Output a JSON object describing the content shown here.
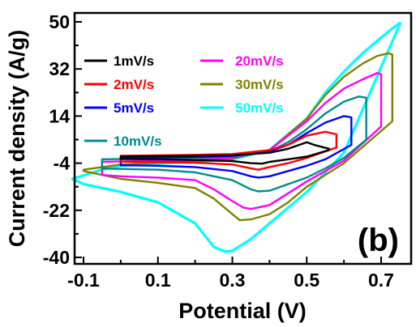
{
  "chart_data": {
    "type": "line",
    "xlabel": "Potential (V)",
    "ylabel": "Current density (A/g)",
    "xlim": [
      -0.1,
      0.75
    ],
    "ylim": [
      -40,
      50
    ],
    "x_ticks": [
      -0.1,
      0.1,
      0.3,
      0.5,
      0.7
    ],
    "x_tick_labels": [
      "-0.1",
      "0.1",
      "0.3",
      "0.5",
      "0.7"
    ],
    "y_ticks": [
      -40,
      -22,
      -4,
      14,
      32,
      50
    ],
    "y_tick_labels": [
      "-40",
      "-22",
      "-4",
      "14",
      "32",
      "50"
    ],
    "grid": false,
    "legend_position": "top",
    "panel_label": "(b)",
    "series": [
      {
        "name": "1mV/s",
        "color": "#000000",
        "x": [
          0.0,
          0.1,
          0.2,
          0.3,
          0.4,
          0.45,
          0.5,
          0.52,
          0.56,
          0.56,
          0.5,
          0.45,
          0.4,
          0.38,
          0.35,
          0.3,
          0.2,
          0.1,
          0.0
        ],
        "y": [
          -1.5,
          -1.3,
          -1.2,
          -1.0,
          0.0,
          1.5,
          4.0,
          3.0,
          1.5,
          1.0,
          -1.5,
          -2.5,
          -3.5,
          -4.2,
          -4.0,
          -3.2,
          -2.8,
          -2.5,
          -2.4
        ]
      },
      {
        "name": "2mV/s",
        "color": "#ff0000",
        "x": [
          0.0,
          0.1,
          0.2,
          0.3,
          0.4,
          0.45,
          0.5,
          0.55,
          0.58,
          0.58,
          0.5,
          0.45,
          0.4,
          0.37,
          0.35,
          0.3,
          0.2,
          0.1,
          0.0
        ],
        "y": [
          -1.2,
          -1.0,
          -0.8,
          -0.5,
          1.0,
          3.0,
          6.5,
          8.0,
          7.0,
          2.0,
          -2.0,
          -4.0,
          -5.5,
          -6.5,
          -6.0,
          -4.5,
          -3.8,
          -3.5,
          -3.4
        ]
      },
      {
        "name": "5mV/s",
        "color": "#0000ff",
        "x": [
          0.0,
          0.1,
          0.2,
          0.3,
          0.4,
          0.45,
          0.5,
          0.55,
          0.6,
          0.62,
          0.62,
          0.55,
          0.5,
          0.45,
          0.4,
          0.37,
          0.35,
          0.3,
          0.2,
          0.1,
          0.0
        ],
        "y": [
          -2.0,
          -1.8,
          -1.6,
          -1.2,
          0.5,
          3.0,
          7.5,
          11.5,
          14.0,
          13.5,
          3.0,
          -2.5,
          -5.0,
          -7.0,
          -9.0,
          -9.5,
          -9.0,
          -7.0,
          -5.5,
          -5.0,
          -4.8
        ]
      },
      {
        "name": "10mV/s",
        "color": "#008b8b",
        "x": [
          -0.05,
          0.1,
          0.2,
          0.3,
          0.4,
          0.45,
          0.5,
          0.55,
          0.6,
          0.64,
          0.66,
          0.66,
          0.6,
          0.55,
          0.5,
          0.45,
          0.4,
          0.37,
          0.35,
          0.3,
          0.2,
          0.1,
          0.0,
          -0.05
        ],
        "y": [
          -2.5,
          -2.2,
          -2.0,
          -1.5,
          0.5,
          4.0,
          9.0,
          15.0,
          19.5,
          21.5,
          21.0,
          5.0,
          -2.0,
          -6.0,
          -9.5,
          -12.0,
          -14.5,
          -14.8,
          -14.0,
          -10.5,
          -7.5,
          -6.5,
          -6.2,
          -6.0
        ]
      },
      {
        "name": "20mV/s",
        "color": "#ff00ff",
        "x": [
          -0.05,
          0.1,
          0.2,
          0.3,
          0.4,
          0.5,
          0.55,
          0.6,
          0.65,
          0.69,
          0.7,
          0.7,
          0.6,
          0.5,
          0.45,
          0.4,
          0.35,
          0.33,
          0.3,
          0.25,
          0.2,
          0.1,
          0.0,
          -0.05
        ],
        "y": [
          -3.5,
          -3.0,
          -2.8,
          -2.0,
          1.0,
          12.0,
          19.0,
          24.5,
          28.0,
          30.5,
          30.0,
          10.0,
          -3.0,
          -11.0,
          -15.5,
          -20.0,
          -21.5,
          -21.0,
          -18.5,
          -14.0,
          -10.5,
          -9.5,
          -9.0,
          -8.5
        ]
      },
      {
        "name": "30mV/s",
        "color": "#808000",
        "x": [
          -0.1,
          0.0,
          0.1,
          0.2,
          0.3,
          0.4,
          0.5,
          0.55,
          0.6,
          0.65,
          0.69,
          0.72,
          0.73,
          0.73,
          0.6,
          0.5,
          0.45,
          0.4,
          0.35,
          0.32,
          0.3,
          0.25,
          0.2,
          0.1,
          0.0,
          -0.1
        ],
        "y": [
          -6.5,
          -4.5,
          -3.8,
          -3.4,
          -2.3,
          1.0,
          13.0,
          22.0,
          29.0,
          34.0,
          37.0,
          38.0,
          37.5,
          12.0,
          -4.0,
          -13.0,
          -19.0,
          -23.5,
          -25.5,
          -25.8,
          -23.5,
          -17.5,
          -13.5,
          -11.5,
          -10.0,
          -7.0
        ]
      },
      {
        "name": "50mV/s",
        "color": "#00ffff",
        "x": [
          -0.13,
          -0.05,
          0.0,
          0.1,
          0.2,
          0.3,
          0.4,
          0.5,
          0.55,
          0.6,
          0.65,
          0.7,
          0.73,
          0.75,
          0.75,
          0.6,
          0.5,
          0.45,
          0.4,
          0.35,
          0.3,
          0.28,
          0.25,
          0.2,
          0.1,
          0.0,
          -0.1,
          -0.13
        ],
        "y": [
          -10.0,
          -6.5,
          -5.0,
          -4.2,
          -3.6,
          -2.5,
          1.0,
          13.0,
          23.0,
          31.0,
          38.0,
          44.0,
          47.5,
          49.5,
          49.0,
          0.0,
          -15.0,
          -21.0,
          -27.0,
          -33.0,
          -37.5,
          -37.8,
          -36.0,
          -27.0,
          -19.0,
          -15.0,
          -12.0,
          -10.0
        ]
      }
    ]
  }
}
